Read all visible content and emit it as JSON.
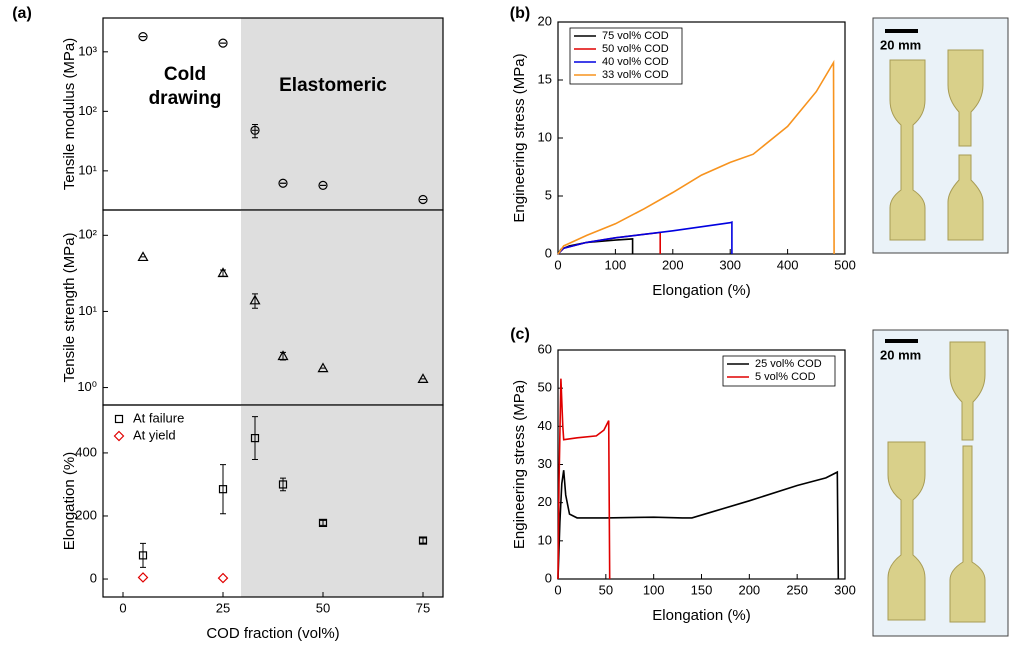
{
  "chart_data": [
    {
      "type": "scatter",
      "panel_label": "(a)",
      "y_label": "Tensile modulus (MPa)",
      "yscale": "log",
      "xlim": [
        -5,
        80
      ],
      "ylim": [
        2.2,
        3700
      ],
      "yticks": [
        {
          "value": 10,
          "label": "10¹"
        },
        {
          "value": 100,
          "label": "10²"
        },
        {
          "value": 1000,
          "label": "10³"
        }
      ],
      "shade_xlim": [
        29.5,
        80
      ],
      "annotations": [
        "Cold",
        "drawing",
        "Elastomeric"
      ],
      "series": [
        {
          "marker": "circle",
          "color": "#000000",
          "x": [
            5,
            25,
            33,
            40,
            50,
            75
          ],
          "values": [
            1800,
            1400,
            48,
            6.2,
            5.7,
            3.3
          ],
          "errors": [
            0,
            0,
            12,
            0,
            0,
            0
          ]
        }
      ]
    },
    {
      "type": "scatter",
      "y_label": "Tensile strength (MPa)",
      "yscale": "log",
      "xlim": [
        -5,
        80
      ],
      "ylim": [
        0.59,
        215
      ],
      "yticks": [
        {
          "value": 1,
          "label": "10⁰"
        },
        {
          "value": 10,
          "label": "10¹"
        },
        {
          "value": 100,
          "label": "10²"
        }
      ],
      "shade_xlim": [
        29.5,
        80
      ],
      "series": [
        {
          "marker": "triangle",
          "color": "#000000",
          "x": [
            5,
            25,
            33,
            40,
            50,
            75
          ],
          "values": [
            52,
            32,
            14,
            2.6,
            1.8,
            1.3
          ],
          "errors": [
            0,
            3,
            3,
            0.3,
            0,
            0
          ]
        }
      ]
    },
    {
      "type": "scatter",
      "y_label": "Elongation (%)",
      "x_label": "COD fraction (vol%)",
      "xlim": [
        -5,
        80
      ],
      "ylim": [
        -57,
        552
      ],
      "xticks": [
        0,
        25,
        50,
        75
      ],
      "yticks": [
        0,
        200,
        400
      ],
      "shade_xlim": [
        29.5,
        80
      ],
      "legend": "upper left",
      "series": [
        {
          "name": "At failure",
          "marker": "square",
          "color": "#000000",
          "x": [
            5,
            25,
            33,
            40,
            50,
            75
          ],
          "values": [
            75,
            285,
            447,
            300,
            178,
            122
          ],
          "errors": [
            38,
            78,
            68,
            20,
            8,
            8
          ]
        },
        {
          "name": "At yield",
          "marker": "diamond",
          "color": "#e00000",
          "x": [
            5,
            25
          ],
          "values": [
            5,
            3
          ]
        }
      ]
    },
    {
      "type": "line",
      "panel_label": "(b)",
      "y_label": "Engineering stress (MPa)",
      "x_label": "Elongation (%)",
      "xlim": [
        0,
        500
      ],
      "ylim": [
        0,
        20
      ],
      "xticks": [
        0,
        100,
        200,
        300,
        400,
        500
      ],
      "yticks": [
        0,
        5,
        10,
        15,
        20
      ],
      "legend": "upper left",
      "series": [
        {
          "name": "75 vol% COD",
          "color": "#000000",
          "x": [
            0,
            5,
            20,
            50,
            100,
            130,
            130
          ],
          "values": [
            0,
            0.4,
            0.7,
            1.0,
            1.2,
            1.3,
            0
          ]
        },
        {
          "name": "50 vol% COD",
          "color": "#e00000",
          "x": [
            0,
            10,
            50,
            100,
            150,
            178,
            178
          ],
          "values": [
            0,
            0.5,
            1.0,
            1.4,
            1.7,
            1.85,
            0
          ]
        },
        {
          "name": "40 vol% COD",
          "color": "#0000e0",
          "x": [
            0,
            10,
            50,
            100,
            200,
            300,
            303,
            303
          ],
          "values": [
            0,
            0.5,
            1.0,
            1.4,
            2.0,
            2.7,
            2.75,
            0
          ]
        },
        {
          "name": "33 vol% COD",
          "color": "#f7931e",
          "x": [
            0,
            10,
            50,
            100,
            150,
            200,
            250,
            300,
            340,
            400,
            450,
            480,
            481
          ],
          "values": [
            0,
            0.7,
            1.6,
            2.6,
            3.9,
            5.3,
            6.8,
            7.9,
            8.6,
            11.0,
            14.0,
            16.5,
            0
          ]
        }
      ]
    },
    {
      "type": "line",
      "panel_label": "(c)",
      "y_label": "Engineering stress (MPa)",
      "x_label": "Elongation (%)",
      "xlim": [
        0,
        300
      ],
      "ylim": [
        0,
        60
      ],
      "xticks": [
        0,
        50,
        100,
        150,
        200,
        250,
        300
      ],
      "yticks": [
        0,
        10,
        20,
        30,
        40,
        50,
        60
      ],
      "legend": "upper right",
      "series": [
        {
          "name": "25 vol% COD",
          "color": "#000000",
          "x": [
            0,
            2,
            4,
            6,
            8,
            12,
            20,
            50,
            100,
            130,
            140,
            160,
            200,
            250,
            280,
            292,
            293
          ],
          "values": [
            0,
            15,
            25,
            28.5,
            22,
            17,
            16,
            16,
            16.2,
            16,
            16,
            17.5,
            20.5,
            24.5,
            26.5,
            28,
            0
          ]
        },
        {
          "name": "5 vol% COD",
          "color": "#e00000",
          "x": [
            0,
            1,
            3,
            5,
            6,
            20,
            40,
            48,
            53,
            54
          ],
          "values": [
            0,
            25,
            52.5,
            40,
            36.5,
            37,
            37.5,
            39,
            41.5,
            0
          ]
        }
      ]
    }
  ],
  "images": [
    {
      "scale_label": "20 mm"
    },
    {
      "scale_label": "20 mm"
    }
  ]
}
